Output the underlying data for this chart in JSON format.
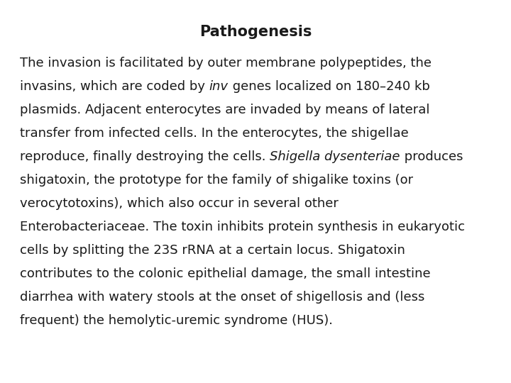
{
  "title": "Pathogenesis",
  "background_color": "#ffffff",
  "title_fontsize": 15,
  "text_fontsize": 13,
  "text_color": "#1a1a1a",
  "fig_width": 7.2,
  "fig_height": 5.4,
  "lines": [
    [
      {
        "t": "The invasion is facilitated by outer membrane polypeptides, the",
        "s": "normal"
      }
    ],
    [
      {
        "t": "invasins, which are coded by ",
        "s": "normal"
      },
      {
        "t": "inv",
        "s": "italic"
      },
      {
        "t": " genes localized on 180–240 kb",
        "s": "normal"
      }
    ],
    [
      {
        "t": "plasmids. Adjacent enterocytes are invaded by means of lateral",
        "s": "normal"
      }
    ],
    [
      {
        "t": "transfer from infected cells. In the enterocytes, the shigellae",
        "s": "normal"
      }
    ],
    [
      {
        "t": "reproduce, finally destroying the cells. ",
        "s": "normal"
      },
      {
        "t": "Shigella dysenteriae",
        "s": "italic"
      },
      {
        "t": " produces",
        "s": "normal"
      }
    ],
    [
      {
        "t": "shigatoxin, the prototype for the family of shigalike toxins (or",
        "s": "normal"
      }
    ],
    [
      {
        "t": "verocytotoxins), which also occur in several other",
        "s": "normal"
      }
    ],
    [
      {
        "t": "Enterobacteriaceae. The toxin inhibits protein synthesis in eukaryotic",
        "s": "normal"
      }
    ],
    [
      {
        "t": "cells by splitting the 23S rRNA at a certain locus. Shigatoxin",
        "s": "normal"
      }
    ],
    [
      {
        "t": "contributes to the colonic epithelial damage, the small intestine",
        "s": "normal"
      }
    ],
    [
      {
        "t": "diarrhea with watery stools at the onset of shigellosis and (less",
        "s": "normal"
      }
    ],
    [
      {
        "t": "frequent) the hemolytic-uremic syndrome (HUS).",
        "s": "normal"
      }
    ]
  ]
}
